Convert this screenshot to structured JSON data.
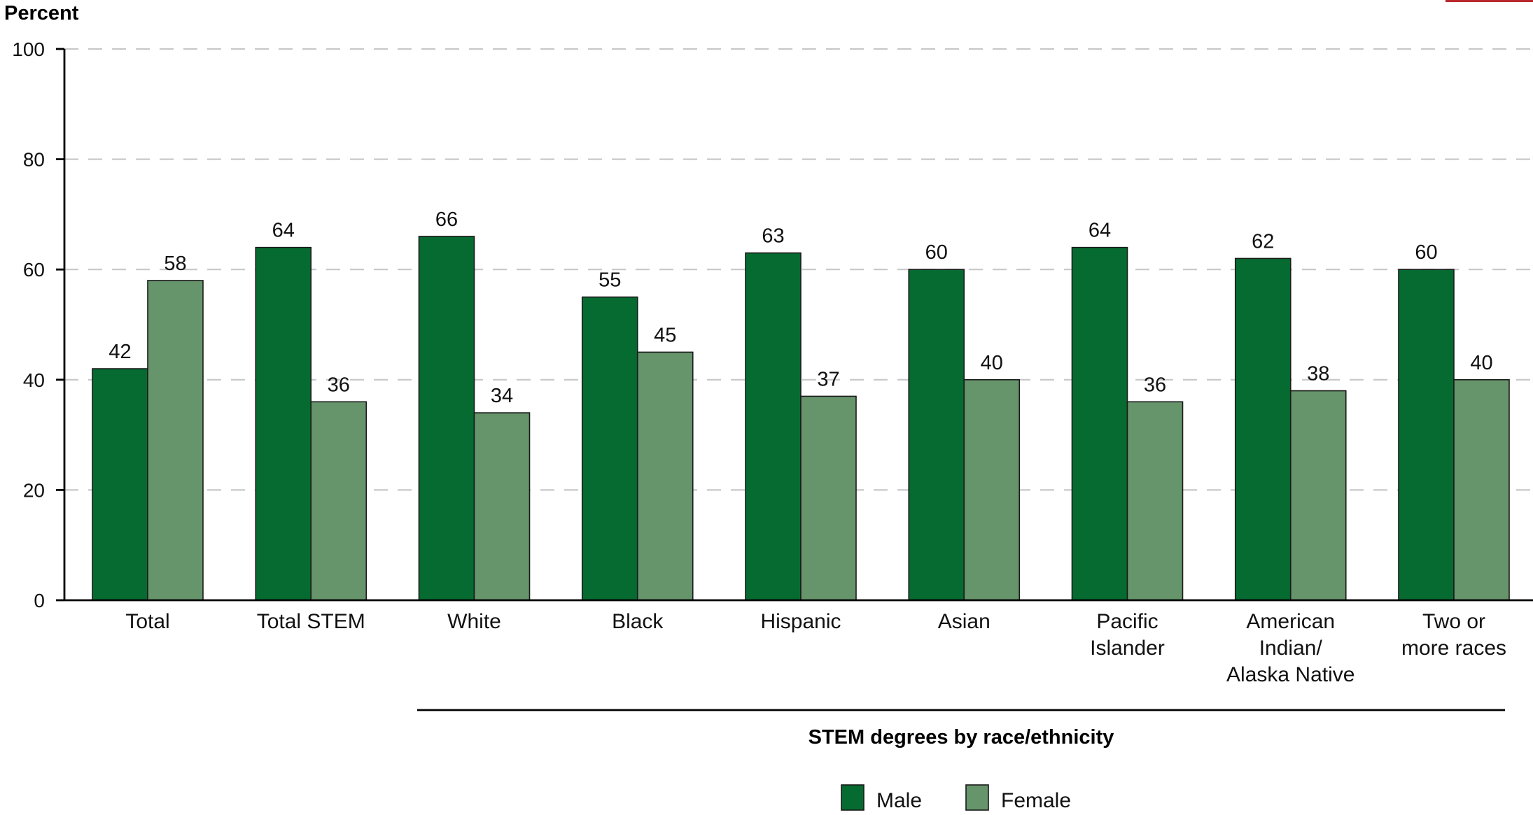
{
  "colors": {
    "male": "#066b30",
    "female": "#66956c",
    "grid": "#c8c8c8",
    "axis": "#000000",
    "accent": "#b8282d"
  },
  "chart_data": {
    "type": "bar",
    "title": "",
    "ylabel": "Percent",
    "xlabel": "",
    "ylim": [
      0,
      100
    ],
    "yticks": [
      0,
      20,
      40,
      60,
      80,
      100
    ],
    "grid": true,
    "legend_position": "bottom-center",
    "group_label": "STEM degrees by race/ethnicity",
    "categories": [
      [
        "Total"
      ],
      [
        "Total STEM"
      ],
      [
        "White"
      ],
      [
        "Black"
      ],
      [
        "Hispanic"
      ],
      [
        "Asian"
      ],
      [
        "Pacific",
        "Islander"
      ],
      [
        "American",
        "Indian/",
        "Alaska Native"
      ],
      [
        "Two or",
        "more races"
      ]
    ],
    "series": [
      {
        "name": "Male",
        "color": "#066b30",
        "values": [
          42,
          64,
          66,
          55,
          63,
          60,
          64,
          62,
          60
        ]
      },
      {
        "name": "Female",
        "color": "#66956c",
        "values": [
          58,
          36,
          34,
          45,
          37,
          40,
          36,
          38,
          40
        ]
      }
    ]
  }
}
